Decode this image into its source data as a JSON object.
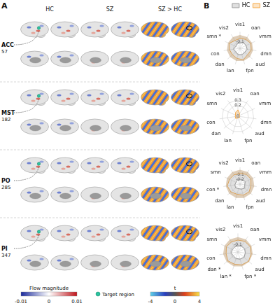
{
  "panel_a": {
    "letter": "A",
    "columns": [
      "HC",
      "SZ",
      "SZ > HC"
    ],
    "targets": [
      {
        "name": "ACC",
        "index": 57
      },
      {
        "name": "MST",
        "index": 182
      },
      {
        "name": "PO",
        "index": 285
      },
      {
        "name": "PI",
        "index": 347
      }
    ],
    "flow_colorbar": {
      "title": "Flow magnitude",
      "range": [
        -0.01,
        0.01
      ],
      "ticks": [
        -0.01,
        0,
        0.01
      ]
    },
    "target_legend": "Target region",
    "t_colorbar": {
      "title": "t",
      "range": [
        -4,
        4
      ],
      "ticks": [
        -4,
        0,
        4
      ]
    }
  },
  "panel_b_letter": "B",
  "chart_data": [
    {
      "type": "radar",
      "legend": "top",
      "categories": [
        "vis1",
        "oan",
        "vmm",
        "dmn",
        "aud",
        "fpn",
        "lan",
        "dan",
        "con",
        "smn",
        "vis2"
      ],
      "series": [
        {
          "name": "HC",
          "color": "#999999",
          "values": [
            -0.12,
            -0.1,
            -0.1,
            -0.09,
            -0.11,
            -0.1,
            -0.1,
            -0.12,
            -0.1,
            -0.13,
            -0.12
          ]
        },
        {
          "name": "SZ",
          "color": "#f5a742",
          "values": [
            -0.05,
            -0.04,
            -0.02,
            -0.03,
            -0.05,
            -0.02,
            -0.04,
            -0.05,
            -0.04,
            -0.02,
            -0.06
          ]
        }
      ],
      "rlim": [
        -0.2,
        0.05
      ],
      "rticks": [
        -0.1
      ],
      "annotations": [
        {
          "category": "smn",
          "text": "*"
        }
      ]
    },
    {
      "type": "radar",
      "categories": [
        "vis1",
        "oan",
        "vmm",
        "dmn",
        "aud",
        "fpn",
        "lan",
        "dan",
        "con",
        "smn",
        "vis2"
      ],
      "series": [
        {
          "name": "HC",
          "color": "#999999",
          "values": [
            0.04,
            0.03,
            0.02,
            0.02,
            0.03,
            0.02,
            0.02,
            0.03,
            0.02,
            0.03,
            0.03
          ]
        },
        {
          "name": "SZ",
          "color": "#f5a742",
          "values": [
            0.12,
            0.06,
            0.03,
            0.03,
            0.04,
            0.03,
            0.04,
            0.06,
            0.05,
            0.05,
            0.08
          ]
        }
      ],
      "rlim": [
        0,
        0.35
      ],
      "rticks": [
        0.1,
        0.2,
        0.3
      ],
      "annotations": []
    },
    {
      "type": "radar",
      "categories": [
        "vis1",
        "oan",
        "vmm",
        "dmn",
        "aud",
        "fpn",
        "lan",
        "dan",
        "con",
        "smn",
        "vis2"
      ],
      "series": [
        {
          "name": "HC",
          "color": "#999999",
          "values": [
            -0.2,
            -0.19,
            -0.18,
            -0.2,
            -0.17,
            -0.19,
            -0.2,
            -0.18,
            -0.19,
            -0.21,
            -0.2
          ]
        },
        {
          "name": "SZ",
          "color": "#f5a742",
          "values": [
            -0.08,
            -0.06,
            -0.05,
            -0.07,
            -0.05,
            -0.06,
            -0.08,
            -0.05,
            -0.03,
            -0.06,
            -0.07
          ]
        }
      ],
      "rlim": [
        -0.3,
        0.05
      ],
      "rticks": [
        -0.2,
        -0.1
      ],
      "annotations": [
        {
          "category": "con",
          "text": "*"
        }
      ]
    },
    {
      "type": "radar",
      "categories": [
        "vis1",
        "oan",
        "vmm",
        "dmn",
        "aud",
        "fpn",
        "lan",
        "dan",
        "con",
        "smn",
        "vis2"
      ],
      "series": [
        {
          "name": "HC",
          "color": "#999999",
          "values": [
            -0.12,
            -0.11,
            -0.1,
            -0.1,
            -0.09,
            -0.1,
            -0.11,
            -0.12,
            -0.11,
            -0.12,
            -0.12
          ]
        },
        {
          "name": "SZ",
          "color": "#f5a742",
          "values": [
            -0.04,
            -0.03,
            -0.02,
            -0.02,
            -0.01,
            -0.02,
            -0.03,
            -0.02,
            -0.04,
            -0.03,
            -0.04
          ]
        }
      ],
      "rlim": [
        -0.2,
        0.05
      ],
      "rticks": [
        -0.1
      ],
      "annotations": [
        {
          "category": "dan",
          "text": "*"
        },
        {
          "category": "lan",
          "text": "*"
        },
        {
          "category": "fpn",
          "text": "*"
        }
      ]
    }
  ]
}
